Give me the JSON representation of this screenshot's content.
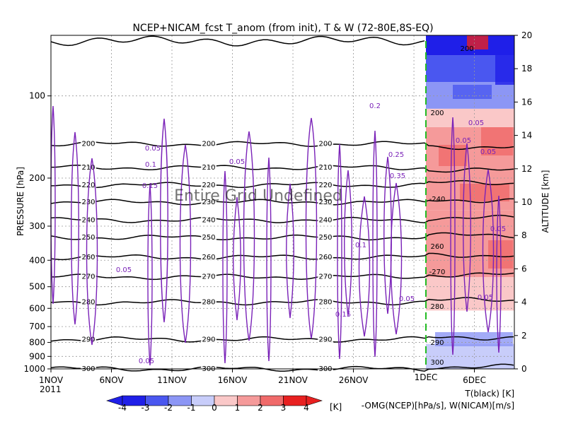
{
  "title": "NCEP+NICAM_fcst T_anom (from init), T & W  (72-80E,8S-EQ)",
  "watermark": "Entire Grid Undefined",
  "colors": {
    "temperature_contour": "#000000",
    "w_contour": "#7a22b8",
    "boundary_line": "#22bb22",
    "shading": [
      "#1f1fe8",
      "#4a57f0",
      "#8c96f5",
      "#c8cdfa",
      "#ffffff",
      "#fac8c8",
      "#f59a9a",
      "#f06a6a",
      "#e82020"
    ]
  },
  "chart_data": {
    "type": "heatmap",
    "title": "NCEP+NICAM_fcst T_anom (from init), T & W  (72-80E,8S-EQ)",
    "x_axis": {
      "ticks": [
        "1NOV",
        "6NOV",
        "11NOV",
        "16NOV",
        "21NOV",
        "26NOV",
        "1DEC",
        "6DEC"
      ],
      "year": "2011",
      "range": [
        "2011-11-01",
        "2011-12-09"
      ]
    },
    "y_axis_left": {
      "label": "PRESSURE [hPa]",
      "ticks": [
        100,
        200,
        300,
        400,
        500,
        600,
        700,
        800,
        900,
        1000
      ],
      "range": [
        1000,
        60
      ],
      "scale": "log"
    },
    "y_axis_right": {
      "label": "ALTITUDE [km]",
      "ticks": [
        0,
        2,
        4,
        6,
        8,
        10,
        12,
        14,
        16,
        18,
        20
      ],
      "range": [
        0,
        20
      ]
    },
    "colorbar": {
      "levels": [
        -4,
        -3,
        -2,
        -1,
        0,
        1,
        2,
        3,
        4
      ],
      "unit": "[K]"
    },
    "legend": {
      "temperature": "T(black) [K]",
      "vertical_motion": "-OMG(NCEP)[hPa/s], W(NICAM)[m/s]"
    },
    "forecast_start": "1DEC",
    "temperature_contours": [
      {
        "level": 200,
        "pressure": 150
      },
      {
        "level": 210,
        "pressure": 183
      },
      {
        "level": 220,
        "pressure": 212
      },
      {
        "level": 230,
        "pressure": 245
      },
      {
        "level": 240,
        "pressure": 285
      },
      {
        "level": 250,
        "pressure": 330
      },
      {
        "level": 260,
        "pressure": 390
      },
      {
        "level": 270,
        "pressure": 460
      },
      {
        "level": 280,
        "pressure": 570
      },
      {
        "level": 290,
        "pressure": 780
      },
      {
        "level": 300,
        "pressure": 1000
      }
    ],
    "temperature_contour_labels": [
      "200",
      "210",
      "220",
      "230",
      "240",
      "250",
      "260",
      "270",
      "280",
      "290",
      "300"
    ],
    "w_contour_labels": [
      "0.05",
      "0.1",
      "0.15",
      "0.2",
      "0.25",
      "0.35",
      "0.05",
      "0.1",
      "0.05",
      "0.15",
      "0.05",
      "0.05"
    ],
    "forecast_temperature_labels": [
      "200",
      "200",
      "-240",
      "260",
      "-270",
      "280",
      "290",
      "300"
    ],
    "forecast_w_labels": [
      "0.05",
      "0.05",
      "0.05",
      "0.05",
      "0.05"
    ]
  }
}
